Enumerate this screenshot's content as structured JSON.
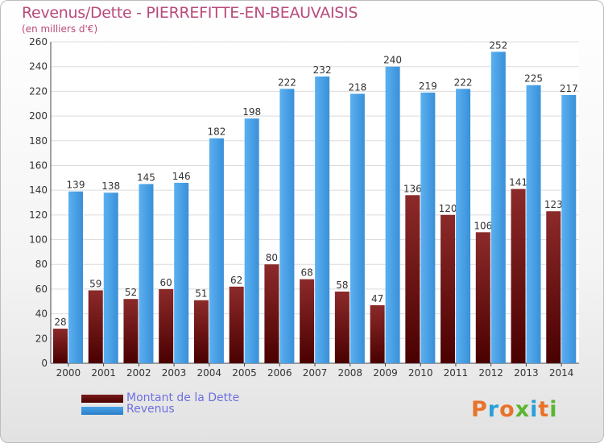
{
  "header": {
    "title": "Revenus/Dette - PIERREFITTE-EN-BEAUVAISIS",
    "subtitle": "(en milliers d'€)"
  },
  "legend": {
    "items": [
      {
        "label": "Montant de la Dette",
        "color": "#7a1a1a"
      },
      {
        "label": "Revenus",
        "color": "#4aa3e8"
      }
    ]
  },
  "logo": {
    "text": "Proxiti",
    "letters": [
      "P",
      "r",
      "o",
      "x",
      "i",
      "t",
      "i"
    ],
    "colors": [
      "#e8732a",
      "#2a9fd8",
      "#e8732a",
      "#5bb531",
      "#2a9fd8",
      "#e8732a",
      "#5bb531"
    ]
  },
  "colors": {
    "dette": "#7a1a1a",
    "revenus": "#4aa3e8",
    "title": "#b94a7a"
  },
  "chart_data": {
    "type": "bar",
    "title": "Revenus/Dette - PIERREFITTE-EN-BEAUVAISIS",
    "subtitle": "(en milliers d'€)",
    "xlabel": "",
    "ylabel": "",
    "ylim": [
      0,
      260
    ],
    "yticks": [
      0,
      20,
      40,
      60,
      80,
      100,
      120,
      140,
      160,
      180,
      200,
      220,
      240,
      260
    ],
    "grid": true,
    "legend_position": "bottom-left",
    "categories": [
      "2000",
      "2001",
      "2002",
      "2003",
      "2004",
      "2005",
      "2006",
      "2007",
      "2008",
      "2009",
      "2010",
      "2011",
      "2012",
      "2013",
      "2014"
    ],
    "series": [
      {
        "name": "Montant de la Dette",
        "values": [
          28,
          59,
          52,
          60,
          51,
          62,
          80,
          68,
          58,
          47,
          136,
          120,
          106,
          141,
          123
        ]
      },
      {
        "name": "Revenus",
        "values": [
          139,
          138,
          145,
          146,
          182,
          198,
          222,
          232,
          218,
          240,
          219,
          222,
          252,
          225,
          217
        ]
      }
    ]
  }
}
